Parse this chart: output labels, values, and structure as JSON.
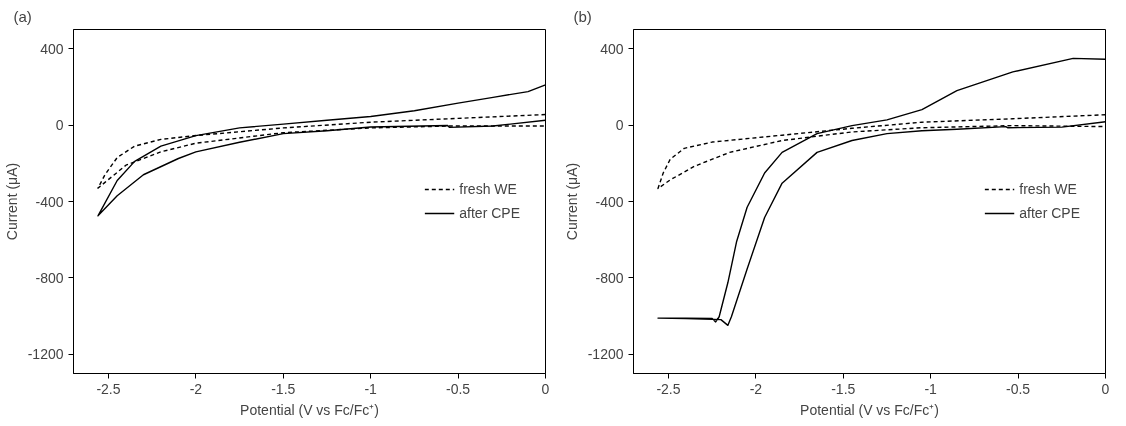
{
  "chart_data": [
    {
      "type": "line",
      "title": "(a)",
      "xlabel": "Potential (V vs Fc/Fc⁺)",
      "ylabel": "Current (μA)",
      "xlim": [
        -2.7,
        0
      ],
      "ylim": [
        -1300,
        500
      ],
      "xticks": [
        -2.5,
        -2,
        -1.5,
        -1,
        -0.5,
        0
      ],
      "yticks": [
        400,
        0,
        -400,
        -800,
        -1200
      ],
      "grid": false,
      "legend": "right",
      "series": [
        {
          "name": "fresh WE",
          "color": "#000000",
          "line_style": "dashed",
          "x": [
            0,
            -0.5,
            -1,
            -1.5,
            -2,
            -2.2,
            -2.35,
            -2.45,
            -2.52,
            -2.56,
            -2.52,
            -2.4,
            -2.2,
            -2,
            -1.5,
            -1,
            -0.55,
            0
          ],
          "values": [
            55,
            35,
            15,
            -15,
            -55,
            -75,
            -110,
            -170,
            -260,
            -330,
            -300,
            -210,
            -140,
            -95,
            -40,
            -15,
            -5,
            -5
          ]
        },
        {
          "name": "after CPE",
          "color": "#000000",
          "line_style": "solid",
          "x": [
            0,
            -0.1,
            -0.3,
            -0.5,
            -0.75,
            -1,
            -1.25,
            -1.5,
            -1.75,
            -2,
            -2.2,
            -2.35,
            -2.45,
            -2.56,
            -2.45,
            -2.3,
            -2.1,
            -2,
            -1.75,
            -1.5,
            -1.25,
            -1,
            -0.56,
            -0.55,
            -0.3,
            0
          ],
          "values": [
            210,
            175,
            145,
            115,
            75,
            45,
            25,
            5,
            -15,
            -55,
            -110,
            -190,
            -290,
            -475,
            -370,
            -260,
            -175,
            -140,
            -90,
            -45,
            -30,
            -10,
            -2,
            -12,
            -5,
            25
          ]
        }
      ]
    },
    {
      "type": "line",
      "title": "(b)",
      "xlabel": "Potential (V vs Fc/Fc⁺)",
      "ylabel": "Current (μA)",
      "xlim": [
        -2.7,
        0
      ],
      "ylim": [
        -1300,
        500
      ],
      "xticks": [
        -2.5,
        -2,
        -1.5,
        -1,
        -0.5,
        0
      ],
      "yticks": [
        400,
        0,
        -400,
        -800,
        -1200
      ],
      "grid": false,
      "legend": "right",
      "series": [
        {
          "name": "fresh WE",
          "color": "#000000",
          "line_style": "dashed",
          "x": [
            0,
            -0.53,
            -1.05,
            -1.45,
            -1.85,
            -2.25,
            -2.41,
            -2.49,
            -2.53,
            -2.56,
            -2.49,
            -2.35,
            -2.15,
            -1.85,
            -1.45,
            -1.05,
            -0.53,
            0
          ],
          "values": [
            54,
            33,
            15,
            -17,
            -53,
            -89,
            -122,
            -179,
            -251,
            -332,
            -287,
            -215,
            -143,
            -81,
            -36,
            -14,
            -3,
            -8
          ]
        },
        {
          "name": "after CPE",
          "color": "#000000",
          "line_style": "solid",
          "x": [
            0,
            -0.185,
            -0.53,
            -0.85,
            -1.05,
            -1.25,
            -1.45,
            -1.65,
            -1.85,
            -1.95,
            -2.05,
            -2.11,
            -2.16,
            -2.21,
            -2.23,
            -2.25,
            -2.4,
            -2.56,
            -2.4,
            -2.2,
            -2.16,
            -2.14,
            -2.05,
            -1.95,
            -1.85,
            -1.65,
            -1.45,
            -1.25,
            -1.05,
            -0.85,
            -0.57,
            -0.56,
            -0.25,
            0
          ],
          "values": [
            344,
            349,
            278,
            180,
            81,
            27,
            -3,
            -45,
            -143,
            -251,
            -430,
            -609,
            -824,
            -1003,
            -1030,
            -1012,
            -1010,
            -1010,
            -1012,
            -1018,
            -1048,
            -1003,
            -753,
            -484,
            -304,
            -143,
            -81,
            -45,
            -30,
            -22,
            -8,
            -14,
            -11,
            17
          ]
        }
      ]
    }
  ]
}
